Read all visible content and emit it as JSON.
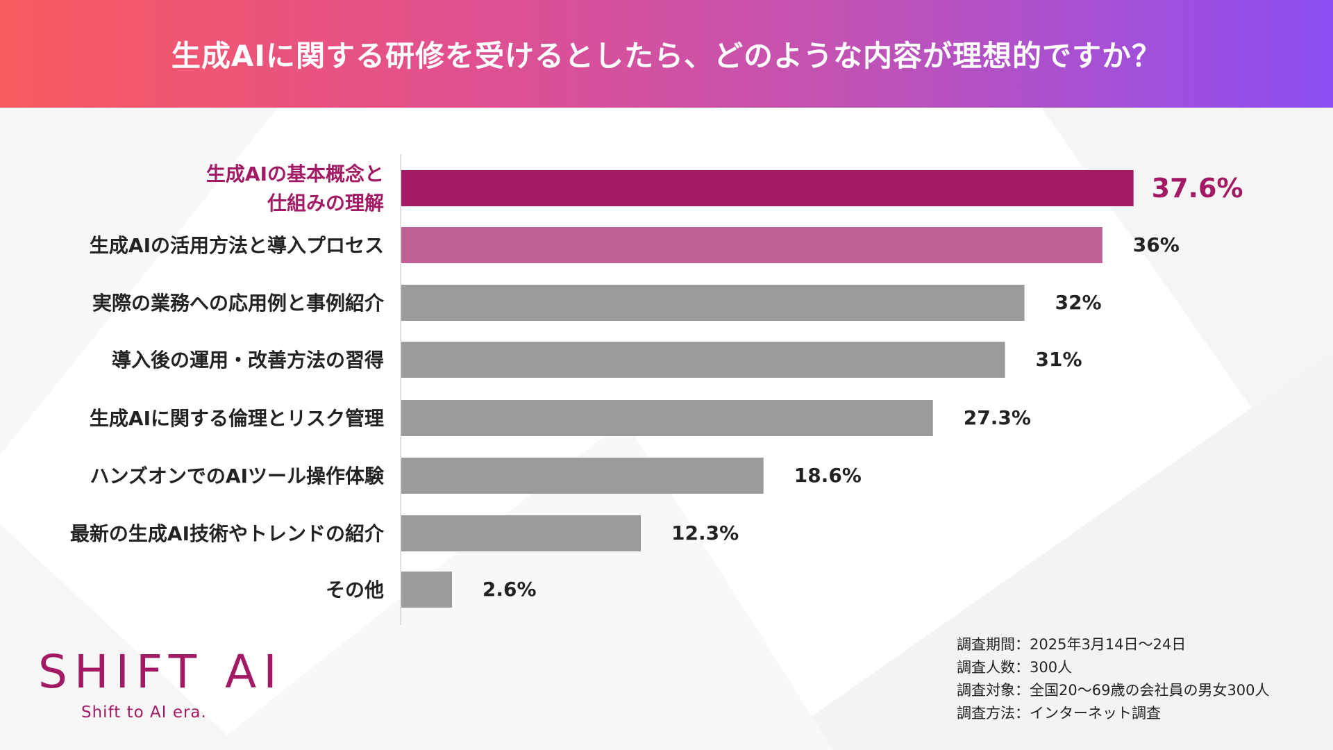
{
  "header": {
    "title": "生成AIに関する研修を受けるとしたら、どのような内容が理想的ですか？"
  },
  "chart_data": {
    "type": "bar",
    "orientation": "horizontal",
    "title": "生成AIに関する研修を受けるとしたら、どのような内容が理想的ですか？",
    "categories": [
      "生成AIの基本概念と\n仕組みの理解",
      "生成AIの活用方法と導入プロセス",
      "実際の業務への応用例と事例紹介",
      "導入後の運用・改善方法の習得",
      "生成AIに関する倫理とリスク管理",
      "ハンズオンでのAIツール操作体験",
      "最新の生成AI技術やトレンドの紹介",
      "その他"
    ],
    "values": [
      37.6,
      36,
      32,
      31,
      27.3,
      18.6,
      12.3,
      2.6
    ],
    "value_labels": [
      "37.6%",
      "36%",
      "32%",
      "31%",
      "27.3%",
      "18.6%",
      "12.3%",
      "2.6%"
    ],
    "xlim": [
      0,
      40
    ],
    "xlabel": "",
    "ylabel": "",
    "colors": [
      "#a21a63",
      "#c06196",
      "#9b9b9b",
      "#9b9b9b",
      "#9b9b9b",
      "#9b9b9b",
      "#9b9b9b",
      "#9b9b9b"
    ],
    "highlight_color": "#a21a63",
    "label_color": "#222222"
  },
  "logo": {
    "name": "SHIFT AI",
    "tagline": "Shift to AI era."
  },
  "survey": {
    "lines": [
      "調査期間：2025年3月14日～24日",
      "調査人数：300人",
      "調査対象：全国20～69歳の会社員の男女300人",
      "調査方法：インターネット調査"
    ]
  }
}
